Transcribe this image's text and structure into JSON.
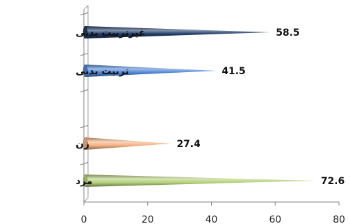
{
  "chart_data": {
    "type": "bar",
    "orientation": "horizontal",
    "categories": [
      "غیرتربیت بدنی",
      "تربیت بدنی",
      "زن",
      "مرد"
    ],
    "values": [
      58.5,
      41.5,
      27.4,
      72.6
    ],
    "value_labels": [
      "58.5",
      "41.5",
      "27.4",
      "72.6"
    ],
    "xlim": [
      0,
      80
    ],
    "x_ticks": [
      0,
      20,
      40,
      60,
      80
    ],
    "x_tick_labels": [
      "0",
      "20",
      "40",
      "60",
      "80"
    ],
    "colors": [
      "#1f3a66",
      "#4f86d6",
      "#f4b183",
      "#b5d07a"
    ],
    "grid": false,
    "legend": "none"
  }
}
